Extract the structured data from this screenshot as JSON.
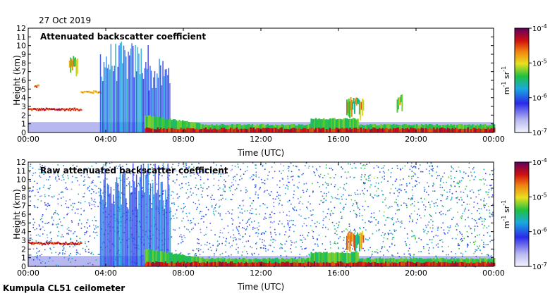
{
  "figure": {
    "date": "27 Oct 2019",
    "footer": "Kumpula CL51 ceilometer"
  },
  "chart_data": [
    {
      "type": "heatmap",
      "title": "Attenuated backscatter coefficient",
      "xlabel": "Time (UTC)",
      "ylabel": "Height (km)",
      "x_ticks": [
        "00:00",
        "04:00",
        "08:00",
        "12:00",
        "16:00",
        "20:00",
        "00:00"
      ],
      "xlim_hours": [
        0,
        24
      ],
      "y_ticks": [
        "0",
        "1",
        "2",
        "3",
        "4",
        "5",
        "6",
        "7",
        "8",
        "9",
        "10",
        "11",
        "12"
      ],
      "ylim_km": [
        0,
        12
      ],
      "colorbar": {
        "min": "10",
        "min_exp": "-7",
        "max": "10",
        "max_exp": "-4",
        "ticks": [
          [
            "10",
            "-7"
          ],
          [
            "10",
            "-6"
          ],
          [
            "10",
            "-5"
          ],
          [
            "10",
            "-4"
          ]
        ],
        "unit": "m",
        "unit_exp1": "-1",
        "unit2": "sr",
        "unit_exp2": "-1",
        "log_range": [
          -7,
          -4
        ]
      },
      "features": [
        {
          "kind": "layer",
          "from_h": 0.0,
          "to_h": 2.7,
          "height_km": 2.6,
          "intensity": 0.95
        },
        {
          "kind": "layer",
          "from_h": 0.3,
          "to_h": 0.5,
          "height_km": 5.3,
          "intensity": 0.9
        },
        {
          "kind": "layer",
          "from_h": 2.7,
          "to_h": 3.7,
          "height_km": 4.6,
          "intensity": 0.8
        },
        {
          "kind": "cloud",
          "from_h": 2.1,
          "to_h": 2.5,
          "height_km": 8.5,
          "intensity": 0.8
        },
        {
          "kind": "precip",
          "from_h": 3.7,
          "to_h": 6.2,
          "top_km": 10.5,
          "intensity": 0.45
        },
        {
          "kind": "precip",
          "from_h": 6.2,
          "to_h": 7.3,
          "top_km": 8.5,
          "intensity": 0.4
        },
        {
          "kind": "boundary",
          "from_h": 6.0,
          "to_h": 24.0,
          "intensity": 1.0
        },
        {
          "kind": "cloud",
          "from_h": 16.4,
          "to_h": 17.3,
          "height_km": 3.8,
          "intensity": 0.85
        },
        {
          "kind": "cloud",
          "from_h": 19.0,
          "to_h": 19.3,
          "height_km": 4.1,
          "intensity": 0.9
        }
      ]
    },
    {
      "type": "heatmap",
      "title": "Raw attenuated backscatter coefficient",
      "xlabel": "Time (UTC)",
      "ylabel": "Height (km)",
      "x_ticks": [
        "00:00",
        "04:00",
        "08:00",
        "12:00",
        "16:00",
        "20:00",
        "00:00"
      ],
      "xlim_hours": [
        0,
        24
      ],
      "y_ticks": [
        "0",
        "1",
        "2",
        "3",
        "4",
        "5",
        "6",
        "7",
        "8",
        "9",
        "10",
        "11",
        "12"
      ],
      "ylim_km": [
        0,
        12
      ],
      "colorbar": {
        "min": "10",
        "min_exp": "-7",
        "max": "10",
        "max_exp": "-4",
        "ticks": [
          [
            "10",
            "-7"
          ],
          [
            "10",
            "-6"
          ],
          [
            "10",
            "-5"
          ],
          [
            "10",
            "-4"
          ]
        ],
        "unit": "m",
        "unit_exp1": "-1",
        "unit2": "sr",
        "unit_exp2": "-1",
        "log_range": [
          -7,
          -4
        ]
      },
      "features": [
        {
          "kind": "noise",
          "from_h": 0.0,
          "to_h": 24.0,
          "intensity": 0.55
        },
        {
          "kind": "layer",
          "from_h": 0.0,
          "to_h": 2.7,
          "height_km": 2.6,
          "intensity": 0.95
        },
        {
          "kind": "precip",
          "from_h": 3.7,
          "to_h": 7.3,
          "top_km": 12.0,
          "intensity": 0.4
        },
        {
          "kind": "boundary",
          "from_h": 6.0,
          "to_h": 24.0,
          "intensity": 1.0
        },
        {
          "kind": "cloud",
          "from_h": 16.4,
          "to_h": 17.3,
          "height_km": 3.8,
          "intensity": 0.85
        }
      ]
    }
  ]
}
